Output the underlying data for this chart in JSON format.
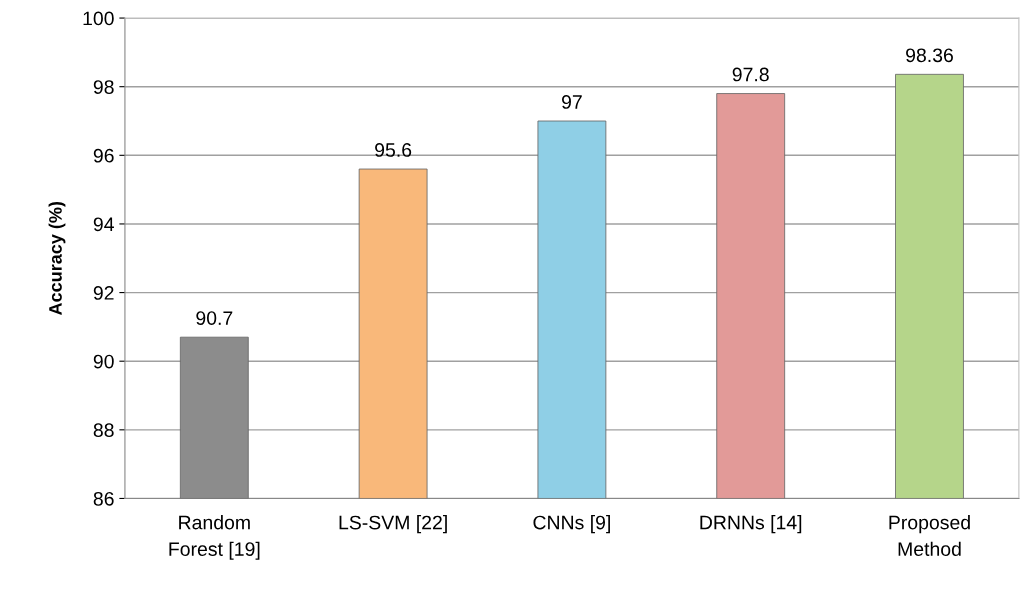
{
  "chart_data": {
    "type": "bar",
    "ylabel": "Accuracy (%)",
    "categories": [
      "Random\nForest [19]",
      "LS-SVM [22]",
      "CNNs [9]",
      "DRNNs [14]",
      "Proposed\nMethod"
    ],
    "values": [
      90.7,
      95.6,
      97,
      97.8,
      98.36
    ],
    "colors": [
      "#8c8c8c",
      "#f9b87a",
      "#8fcfe6",
      "#e29a98",
      "#b5d58a"
    ],
    "ylim": [
      86,
      100
    ],
    "yticks": [
      86,
      88,
      90,
      92,
      94,
      96,
      98,
      100
    ],
    "grid": "y",
    "data_labels": true
  }
}
